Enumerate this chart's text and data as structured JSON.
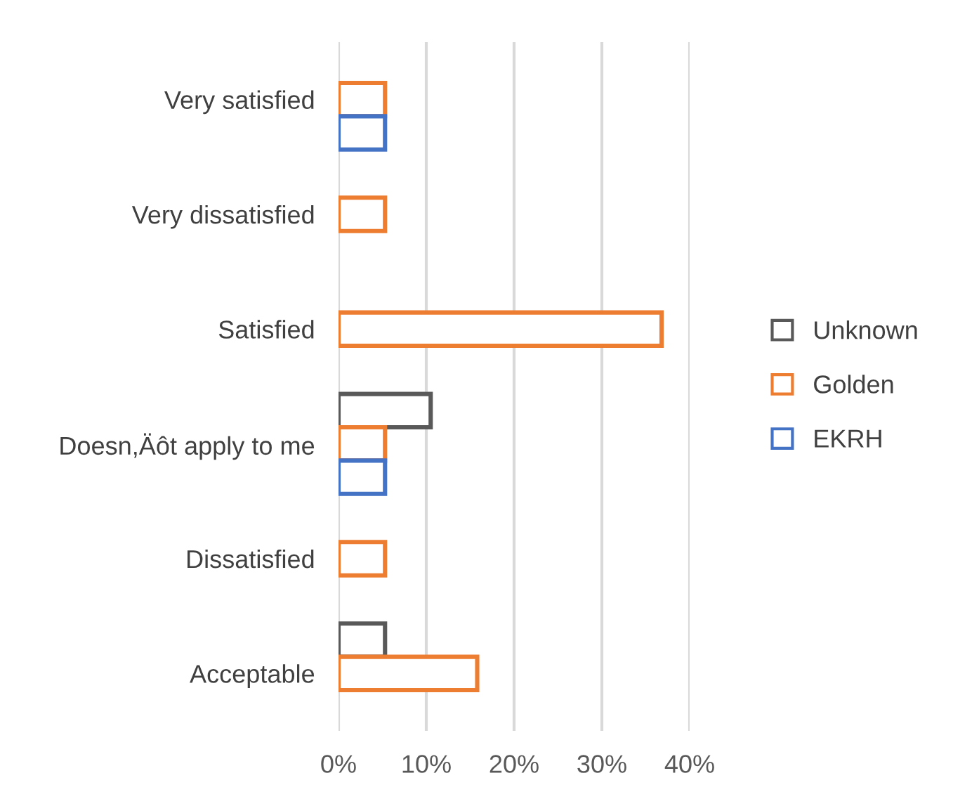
{
  "chart_data": {
    "type": "bar",
    "orientation": "horizontal",
    "categories": [
      "Very satisfied",
      "Very dissatisfied",
      "Satisfied",
      "Doesn,Äôt apply to me",
      "Dissatisfied",
      "Acceptable"
    ],
    "series": [
      {
        "name": "Unknown",
        "color": "#595959",
        "values": [
          null,
          null,
          null,
          10.5,
          null,
          5.3
        ]
      },
      {
        "name": "Golden",
        "color": "#ed7d31",
        "values": [
          5.3,
          5.3,
          36.8,
          5.3,
          5.3,
          15.8
        ]
      },
      {
        "name": "EKRH",
        "color": "#4472c4",
        "values": [
          5.3,
          null,
          null,
          5.3,
          null,
          null
        ]
      }
    ],
    "xlim": [
      0,
      40
    ],
    "xticks": [
      {
        "value": 0,
        "label": "0%"
      },
      {
        "value": 10,
        "label": "10%"
      },
      {
        "value": 20,
        "label": "20%"
      },
      {
        "value": 30,
        "label": "30%"
      },
      {
        "value": 40,
        "label": "40%"
      }
    ],
    "grid": "x",
    "legend": "right"
  }
}
